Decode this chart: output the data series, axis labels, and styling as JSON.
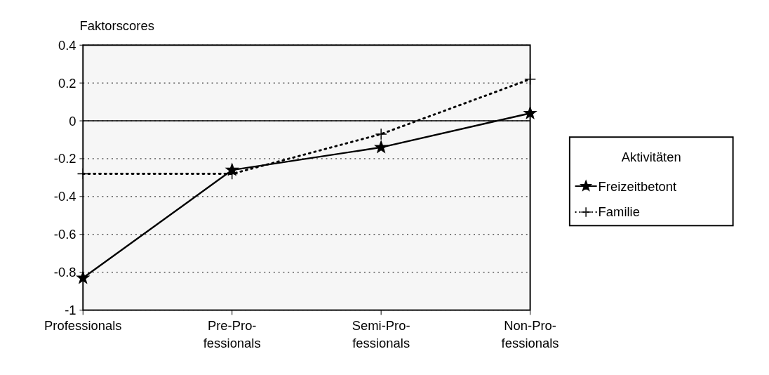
{
  "chart_data": {
    "type": "line",
    "ylabel": "Faktorscores",
    "categories": [
      "Professionals",
      "Pre-Pro-\nfessionals",
      "Semi-Pro-\nfessionals",
      "Non-Pro-\nfessionals"
    ],
    "series": [
      {
        "name": "Freizeitbetont",
        "color": "#000000",
        "values": [
          -0.83,
          -0.26,
          -0.14,
          0.04
        ],
        "marker": "star",
        "line_style": "solid"
      },
      {
        "name": "Familie",
        "color": "#000000",
        "values": [
          -0.28,
          -0.28,
          -0.07,
          0.22
        ],
        "marker": "cross",
        "line_style": "dotted"
      }
    ],
    "legend_title": "Aktivitäten",
    "legend": "right",
    "ylim": [
      -1,
      0.4
    ],
    "yticks": [
      0.4,
      0.2,
      0,
      -0.2,
      -0.4,
      -0.6,
      -0.8,
      -1
    ],
    "grid": "y",
    "ref_lines": [
      {
        "axis": "y",
        "value": 0,
        "label": null
      }
    ]
  }
}
